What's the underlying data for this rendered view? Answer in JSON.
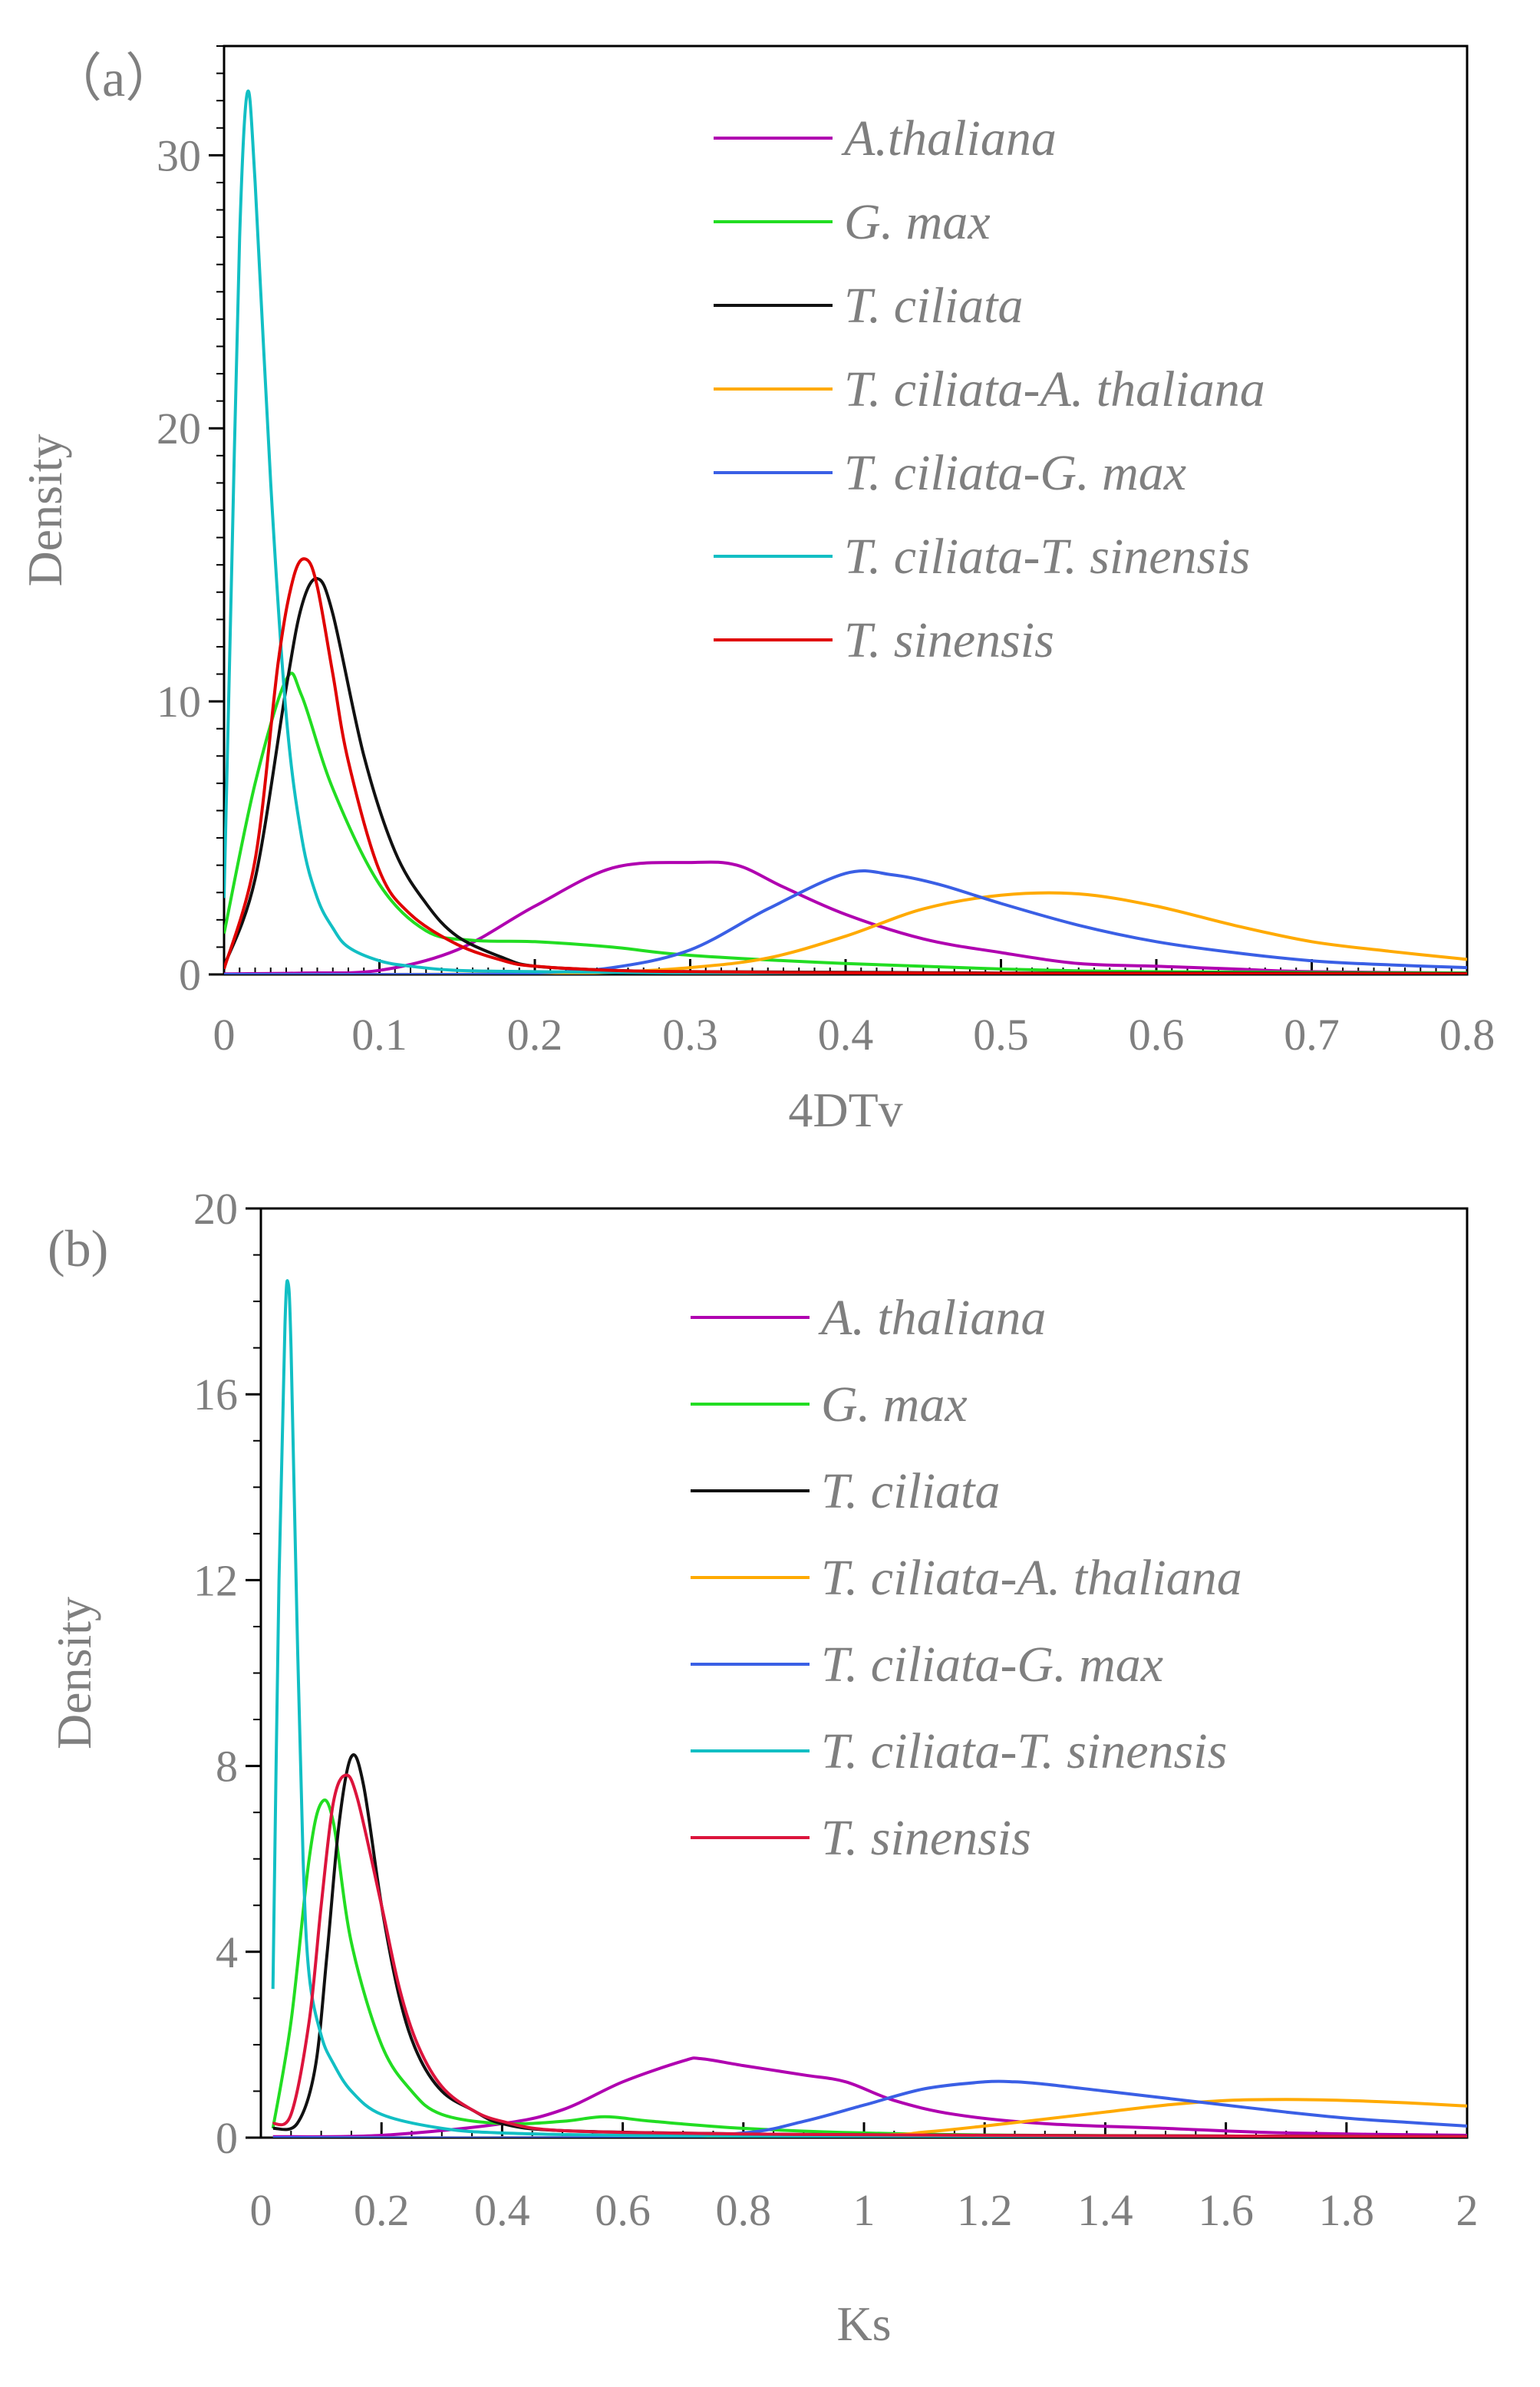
{
  "chart_data": [
    {
      "type": "line",
      "panel_label": "（a）",
      "xlabel": "4DTv",
      "ylabel": "Density",
      "xlim": [
        0,
        0.8
      ],
      "ylim": [
        0,
        34
      ],
      "x_ticks": [
        0,
        0.1,
        0.2,
        0.3,
        0.4,
        0.5,
        0.6,
        0.7,
        0.8
      ],
      "x_tick_labels": [
        "0",
        "0.1",
        "0.2",
        "0.3",
        "0.4",
        "0.5",
        "0.6",
        "0.7",
        "0.8"
      ],
      "y_ticks": [
        0,
        10,
        20,
        30
      ],
      "y_tick_labels": [
        "0",
        "10",
        "20",
        "30"
      ],
      "y_minor_step": 1,
      "x_minor_step": 0.01,
      "legend_position": "top-right",
      "series": [
        {
          "name": "A.thaliana",
          "color": "#B000B0",
          "x": [
            0,
            0.05,
            0.1,
            0.15,
            0.2,
            0.25,
            0.3,
            0.33,
            0.36,
            0.4,
            0.45,
            0.5,
            0.55,
            0.6,
            0.65,
            0.7,
            0.8
          ],
          "y": [
            0.02,
            0.05,
            0.15,
            0.9,
            2.5,
            3.9,
            4.1,
            4.0,
            3.2,
            2.2,
            1.3,
            0.8,
            0.4,
            0.3,
            0.2,
            0.1,
            0.05
          ]
        },
        {
          "name": "G. max",
          "color": "#22DD22",
          "x": [
            0,
            0.02,
            0.04,
            0.05,
            0.07,
            0.1,
            0.13,
            0.16,
            0.2,
            0.25,
            0.3,
            0.4,
            0.5,
            0.6,
            0.8
          ],
          "y": [
            1.5,
            7.0,
            10.8,
            10.2,
            6.8,
            3.3,
            1.6,
            1.25,
            1.2,
            1.0,
            0.7,
            0.4,
            0.2,
            0.1,
            0.05
          ]
        },
        {
          "name": "T. ciliata",
          "color": "#111111",
          "x": [
            0,
            0.02,
            0.04,
            0.05,
            0.06,
            0.07,
            0.09,
            0.11,
            0.13,
            0.15,
            0.18,
            0.2,
            0.25,
            0.3,
            0.4,
            0.5,
            0.6,
            0.8
          ],
          "y": [
            0.3,
            3.5,
            10.5,
            13.5,
            14.5,
            13.2,
            8.0,
            4.5,
            2.6,
            1.4,
            0.6,
            0.3,
            0.15,
            0.1,
            0.08,
            0.05,
            0.05,
            0.03
          ]
        },
        {
          "name": "T. ciliata-A. thaliana",
          "color": "#FFAA00",
          "x": [
            0,
            0.1,
            0.2,
            0.25,
            0.3,
            0.35,
            0.4,
            0.45,
            0.5,
            0.55,
            0.6,
            0.65,
            0.7,
            0.75,
            0.8
          ],
          "y": [
            0,
            0,
            0.02,
            0.08,
            0.25,
            0.6,
            1.4,
            2.4,
            2.9,
            2.95,
            2.5,
            1.8,
            1.2,
            0.85,
            0.55
          ]
        },
        {
          "name": "T. ciliata-G. max",
          "color": "#3A5FE5",
          "x": [
            0,
            0.15,
            0.2,
            0.25,
            0.3,
            0.35,
            0.4,
            0.43,
            0.46,
            0.5,
            0.55,
            0.6,
            0.65,
            0.7,
            0.75,
            0.8
          ],
          "y": [
            0,
            0,
            0.05,
            0.25,
            0.9,
            2.4,
            3.7,
            3.65,
            3.3,
            2.6,
            1.8,
            1.2,
            0.8,
            0.5,
            0.35,
            0.25
          ]
        },
        {
          "name": "T. ciliata-T. sinensis",
          "color": "#12BFC4",
          "x": [
            0,
            0.005,
            0.01,
            0.015,
            0.02,
            0.03,
            0.04,
            0.05,
            0.06,
            0.07,
            0.08,
            0.1,
            0.12,
            0.15,
            0.2,
            0.3,
            0.5,
            0.8
          ],
          "y": [
            2.8,
            15.0,
            27.0,
            32.3,
            29.0,
            18.0,
            9.5,
            5.0,
            2.8,
            1.7,
            1.0,
            0.5,
            0.3,
            0.15,
            0.1,
            0.05,
            0.02,
            0.01
          ]
        },
        {
          "name": "T. sinensis",
          "color": "#E00000",
          "x": [
            0,
            0.02,
            0.035,
            0.045,
            0.053,
            0.06,
            0.07,
            0.08,
            0.1,
            0.12,
            0.15,
            0.18,
            0.2,
            0.25,
            0.3,
            0.4,
            0.5,
            0.6,
            0.8
          ],
          "y": [
            0.2,
            4.2,
            11.5,
            14.6,
            15.2,
            14.2,
            11.0,
            7.8,
            3.8,
            2.2,
            1.1,
            0.5,
            0.3,
            0.15,
            0.1,
            0.06,
            0.04,
            0.03,
            0.02
          ]
        }
      ]
    },
    {
      "type": "line",
      "panel_label": "(b)",
      "xlabel": "Ks",
      "ylabel": "Density",
      "xlim": [
        0,
        2
      ],
      "ylim": [
        0,
        20
      ],
      "x_ticks": [
        0,
        0.2,
        0.4,
        0.6,
        0.8,
        1.0,
        1.2,
        1.4,
        1.6,
        1.8,
        2.0
      ],
      "x_tick_labels": [
        "0",
        "0.2",
        "0.4",
        "0.6",
        "0.8",
        "1",
        "1.2",
        "1.4",
        "1.6",
        "1.8",
        "2"
      ],
      "y_ticks": [
        0,
        4,
        8,
        12,
        16,
        20
      ],
      "y_tick_labels": [
        "0",
        "4",
        "8",
        "12",
        "16",
        "20"
      ],
      "y_minor_step": 1,
      "x_minor_step": 0.05,
      "legend_position": "top-right",
      "series": [
        {
          "name": "A. thaliana",
          "color": "#B000B0",
          "x": [
            0.02,
            0.2,
            0.4,
            0.5,
            0.6,
            0.7,
            0.73,
            0.8,
            0.9,
            0.97,
            1.05,
            1.15,
            1.3,
            1.5,
            1.7,
            2.0
          ],
          "y": [
            0.02,
            0.05,
            0.3,
            0.6,
            1.2,
            1.65,
            1.7,
            1.55,
            1.35,
            1.2,
            0.8,
            0.5,
            0.3,
            0.2,
            0.1,
            0.05
          ]
        },
        {
          "name": "G. max",
          "color": "#22DD22",
          "x": [
            0.02,
            0.05,
            0.08,
            0.1,
            0.12,
            0.15,
            0.2,
            0.25,
            0.3,
            0.4,
            0.5,
            0.57,
            0.65,
            0.8,
            1.0,
            1.3,
            2.0
          ],
          "y": [
            0.2,
            2.5,
            6.0,
            7.2,
            6.8,
            4.2,
            2.0,
            1.0,
            0.5,
            0.3,
            0.35,
            0.45,
            0.35,
            0.2,
            0.1,
            0.05,
            0.02
          ]
        },
        {
          "name": "T. ciliata",
          "color": "#111111",
          "x": [
            0.02,
            0.06,
            0.09,
            0.11,
            0.13,
            0.15,
            0.17,
            0.2,
            0.23,
            0.26,
            0.3,
            0.35,
            0.4,
            0.5,
            0.8,
            1.2,
            2.0
          ],
          "y": [
            0.2,
            0.3,
            1.5,
            4.0,
            6.8,
            8.2,
            7.6,
            5.0,
            3.0,
            1.8,
            1.0,
            0.6,
            0.3,
            0.15,
            0.08,
            0.05,
            0.02
          ]
        },
        {
          "name": "T. ciliata-A. thaliana",
          "color": "#FFAA00",
          "x": [
            0.02,
            0.5,
            1.0,
            1.1,
            1.2,
            1.3,
            1.4,
            1.5,
            1.6,
            1.7,
            1.8,
            1.9,
            2.0
          ],
          "y": [
            0,
            0,
            0.05,
            0.12,
            0.25,
            0.4,
            0.55,
            0.7,
            0.8,
            0.82,
            0.8,
            0.75,
            0.68
          ]
        },
        {
          "name": "T. ciliata-G. max",
          "color": "#3A5FE5",
          "x": [
            0.02,
            0.6,
            0.8,
            0.9,
            1.0,
            1.1,
            1.2,
            1.25,
            1.3,
            1.4,
            1.5,
            1.6,
            1.7,
            1.8,
            1.9,
            2.0
          ],
          "y": [
            0,
            0,
            0.1,
            0.35,
            0.7,
            1.05,
            1.2,
            1.2,
            1.15,
            1.0,
            0.85,
            0.7,
            0.55,
            0.42,
            0.33,
            0.25
          ]
        },
        {
          "name": "T. ciliata-T. sinensis",
          "color": "#12BFC4",
          "x": [
            0.02,
            0.03,
            0.04,
            0.045,
            0.05,
            0.06,
            0.07,
            0.08,
            0.1,
            0.12,
            0.15,
            0.2,
            0.3,
            0.4,
            0.6,
            1.0,
            2.0
          ],
          "y": [
            3.2,
            12.0,
            17.5,
            18.4,
            17.0,
            11.0,
            6.0,
            3.5,
            2.2,
            1.6,
            1.0,
            0.5,
            0.2,
            0.1,
            0.05,
            0.02,
            0.01
          ]
        },
        {
          "name": "T. sinensis",
          "color": "#DC143C",
          "x": [
            0.02,
            0.05,
            0.08,
            0.1,
            0.12,
            0.14,
            0.16,
            0.2,
            0.23,
            0.26,
            0.3,
            0.35,
            0.4,
            0.5,
            0.8,
            1.2,
            2.0
          ],
          "y": [
            0.3,
            0.5,
            2.5,
            5.0,
            7.2,
            7.8,
            7.3,
            5.0,
            3.2,
            2.0,
            1.1,
            0.6,
            0.35,
            0.15,
            0.08,
            0.05,
            0.02
          ]
        }
      ]
    }
  ]
}
